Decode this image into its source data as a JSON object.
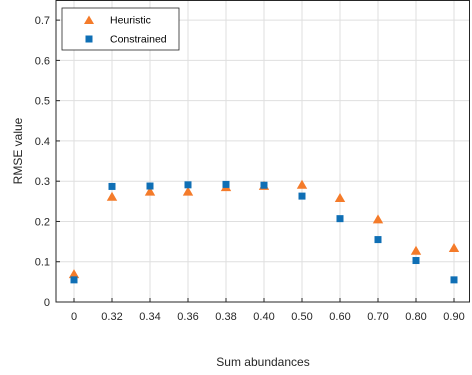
{
  "chart_data": {
    "type": "scatter",
    "categories": [
      "0",
      "0.32",
      "0.34",
      "0.36",
      "0.38",
      "0.40",
      "0.50",
      "0.60",
      "0.70",
      "0.80",
      "0.90"
    ],
    "series": [
      {
        "name": "Heuristic",
        "marker": "triangle",
        "color": "#f47b2a",
        "values": [
          0.068,
          0.26,
          0.273,
          0.273,
          0.284,
          0.287,
          0.29,
          0.257,
          0.204,
          0.126,
          0.133
        ]
      },
      {
        "name": "Constrained",
        "marker": "square",
        "color": "#0f6fb5",
        "values": [
          0.055,
          0.287,
          0.288,
          0.291,
          0.292,
          0.29,
          0.263,
          0.207,
          0.155,
          0.103,
          0.055
        ]
      }
    ],
    "xlabel": "Sum abundances",
    "ylabel": "RMSE value",
    "ylim": [
      0,
      0.75
    ],
    "yticks": [
      "0",
      "0.1",
      "0.2",
      "0.3",
      "0.4",
      "0.5",
      "0.6",
      "0.7"
    ],
    "grid": true,
    "legend_position": "top-left"
  }
}
